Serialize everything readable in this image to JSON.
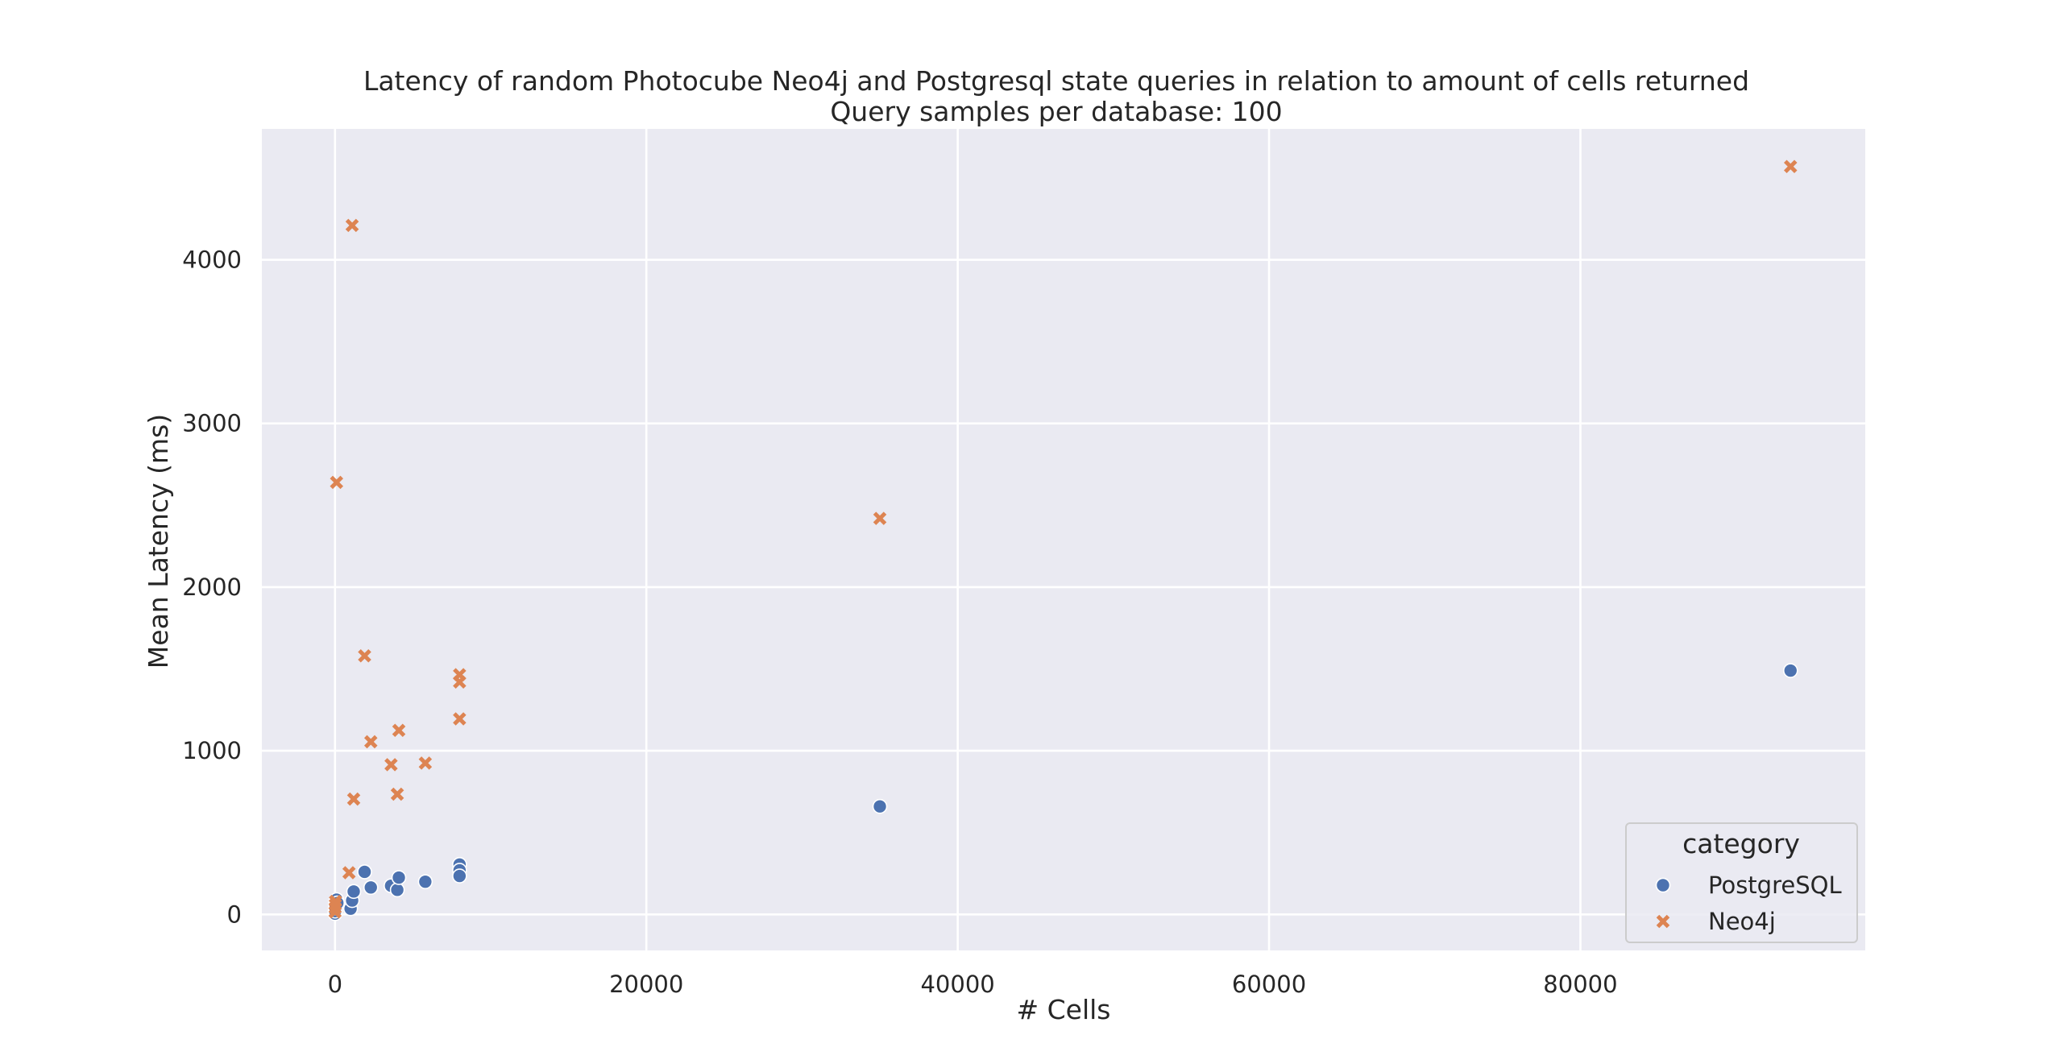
{
  "chart_data": {
    "type": "scatter",
    "title": "Latency of random Photocube Neo4j and Postgresql state queries in relation to amount of cells returned",
    "subtitle": "Query samples per database: 100",
    "xlabel": "# Cells",
    "ylabel": "Mean Latency (ms)",
    "xlim": [
      -4700,
      98300
    ],
    "ylim": [
      -220,
      4800
    ],
    "xticks": [
      0,
      20000,
      40000,
      60000,
      80000
    ],
    "yticks": [
      0,
      1000,
      2000,
      3000,
      4000
    ],
    "grid": true,
    "legend": {
      "title": "category",
      "placement": "bottom-right"
    },
    "series": [
      {
        "name": "PostgreSQL",
        "color": "#4c72b0",
        "marker": "circle",
        "points": [
          [
            0,
            5
          ],
          [
            10,
            20
          ],
          [
            20,
            40
          ],
          [
            30,
            60
          ],
          [
            50,
            80
          ],
          [
            100,
            90
          ],
          [
            150,
            70
          ],
          [
            1000,
            35
          ],
          [
            1100,
            85
          ],
          [
            1200,
            140
          ],
          [
            1900,
            260
          ],
          [
            2300,
            165
          ],
          [
            3600,
            175
          ],
          [
            4000,
            150
          ],
          [
            4100,
            225
          ],
          [
            5800,
            200
          ],
          [
            8000,
            305
          ],
          [
            8000,
            270
          ],
          [
            8000,
            235
          ],
          [
            35000,
            660
          ],
          [
            93500,
            1490
          ]
        ]
      },
      {
        "name": "Neo4j",
        "color": "#dd8452",
        "marker": "x",
        "points": [
          [
            0,
            15
          ],
          [
            10,
            40
          ],
          [
            20,
            60
          ],
          [
            30,
            80
          ],
          [
            100,
            2640
          ],
          [
            900,
            255
          ],
          [
            1100,
            4210
          ],
          [
            1200,
            705
          ],
          [
            1900,
            1580
          ],
          [
            2300,
            1055
          ],
          [
            3600,
            915
          ],
          [
            4000,
            735
          ],
          [
            4100,
            1125
          ],
          [
            5800,
            925
          ],
          [
            8000,
            1465
          ],
          [
            8000,
            1420
          ],
          [
            8000,
            1195
          ],
          [
            35000,
            2420
          ],
          [
            93500,
            4570
          ]
        ]
      }
    ]
  }
}
